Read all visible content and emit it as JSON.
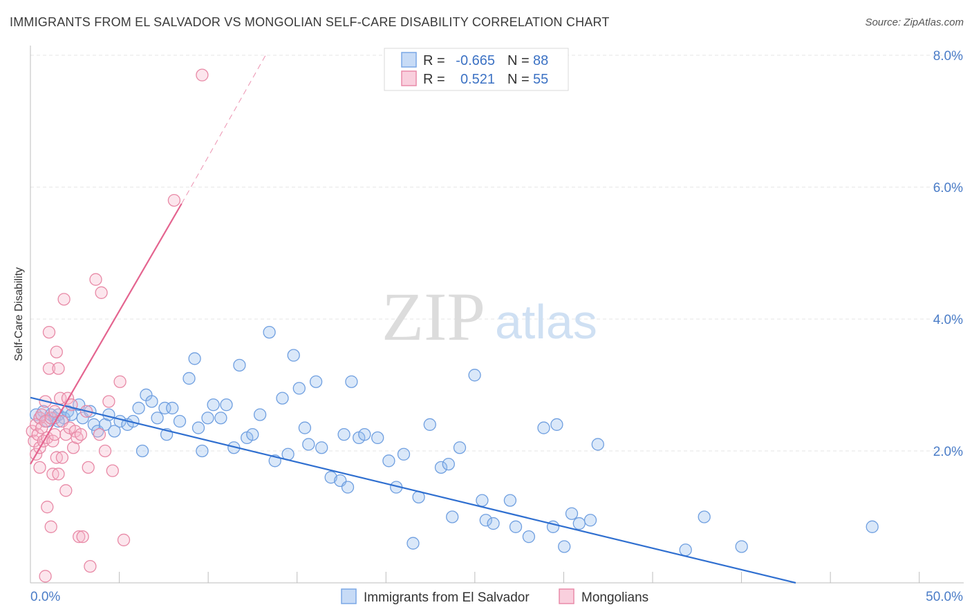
{
  "title": "IMMIGRANTS FROM EL SALVADOR VS MONGOLIAN SELF-CARE DISABILITY CORRELATION CHART",
  "source": "Source: ZipAtlas.com",
  "watermark": {
    "zip": "ZIP",
    "atlas": "atlas"
  },
  "stats": {
    "r_label": "R =",
    "n_label": "N =",
    "rows": [
      {
        "r": "-0.665",
        "n": "88",
        "color": "#7aa7e6",
        "fill": "#c7dbf6"
      },
      {
        "r": "0.521",
        "n": "55",
        "color": "#e98aa8",
        "fill": "#f9cfdd"
      }
    ]
  },
  "chart_data": {
    "type": "scatter",
    "xlabel": "",
    "ylabel": "Self-Care Disability",
    "xlim": [
      0,
      50
    ],
    "ylim": [
      0,
      8
    ],
    "x_tick_labels": [
      "0.0%",
      "50.0%"
    ],
    "y_ticks": [
      {
        "value": 2,
        "label": "2.0%"
      },
      {
        "value": 4,
        "label": "4.0%"
      },
      {
        "value": 6,
        "label": "6.0%"
      },
      {
        "value": 8,
        "label": "8.0%"
      }
    ],
    "series": [
      {
        "name": "Immigrants from El Salvador",
        "color": "#6f9fe0",
        "fill": "rgba(150,188,238,0.35)",
        "trend": {
          "x": [
            0,
            41
          ],
          "y": [
            2.81,
            0.0
          ],
          "color": "#2f6fd0"
        },
        "points": [
          [
            0.3,
            2.55
          ],
          [
            0.5,
            2.5
          ],
          [
            0.7,
            2.6
          ],
          [
            0.9,
            2.45
          ],
          [
            1.1,
            2.55
          ],
          [
            1.3,
            2.5
          ],
          [
            1.5,
            2.55
          ],
          [
            1.8,
            2.5
          ],
          [
            2.0,
            2.6
          ],
          [
            2.2,
            2.55
          ],
          [
            1.5,
            2.45
          ],
          [
            2.6,
            2.7
          ],
          [
            2.8,
            2.5
          ],
          [
            3.2,
            2.6
          ],
          [
            3.4,
            2.4
          ],
          [
            3.6,
            2.3
          ],
          [
            4.0,
            2.4
          ],
          [
            4.2,
            2.55
          ],
          [
            4.5,
            2.3
          ],
          [
            4.8,
            2.45
          ],
          [
            5.2,
            2.4
          ],
          [
            5.5,
            2.45
          ],
          [
            5.8,
            2.65
          ],
          [
            6.0,
            2.0
          ],
          [
            6.2,
            2.85
          ],
          [
            6.5,
            2.75
          ],
          [
            6.8,
            2.5
          ],
          [
            7.2,
            2.65
          ],
          [
            7.3,
            2.25
          ],
          [
            7.6,
            2.65
          ],
          [
            8.0,
            2.45
          ],
          [
            8.5,
            3.1
          ],
          [
            8.8,
            3.4
          ],
          [
            9.0,
            2.35
          ],
          [
            9.2,
            2.0
          ],
          [
            9.5,
            2.5
          ],
          [
            9.8,
            2.7
          ],
          [
            10.2,
            2.5
          ],
          [
            10.5,
            2.7
          ],
          [
            10.9,
            2.05
          ],
          [
            11.2,
            3.3
          ],
          [
            11.6,
            2.2
          ],
          [
            11.9,
            2.25
          ],
          [
            12.3,
            2.55
          ],
          [
            12.8,
            3.8
          ],
          [
            13.1,
            1.85
          ],
          [
            13.5,
            2.8
          ],
          [
            13.8,
            1.95
          ],
          [
            14.1,
            3.45
          ],
          [
            14.4,
            2.95
          ],
          [
            14.7,
            2.35
          ],
          [
            14.9,
            2.1
          ],
          [
            15.3,
            3.05
          ],
          [
            15.6,
            2.05
          ],
          [
            16.1,
            1.6
          ],
          [
            16.6,
            1.55
          ],
          [
            16.8,
            2.25
          ],
          [
            17.0,
            1.45
          ],
          [
            17.2,
            3.05
          ],
          [
            17.6,
            2.2
          ],
          [
            17.9,
            2.25
          ],
          [
            18.6,
            2.2
          ],
          [
            19.2,
            1.85
          ],
          [
            19.6,
            1.45
          ],
          [
            20.0,
            1.95
          ],
          [
            20.5,
            0.6
          ],
          [
            20.8,
            1.3
          ],
          [
            21.4,
            2.4
          ],
          [
            22.0,
            1.75
          ],
          [
            22.4,
            1.8
          ],
          [
            22.6,
            1.0
          ],
          [
            23.0,
            2.05
          ],
          [
            23.8,
            3.15
          ],
          [
            24.2,
            1.25
          ],
          [
            24.4,
            0.95
          ],
          [
            24.8,
            0.9
          ],
          [
            25.7,
            1.25
          ],
          [
            26.0,
            0.85
          ],
          [
            26.7,
            0.7
          ],
          [
            27.5,
            2.35
          ],
          [
            28.0,
            0.85
          ],
          [
            28.2,
            2.4
          ],
          [
            28.6,
            0.55
          ],
          [
            29.0,
            1.05
          ],
          [
            29.4,
            0.9
          ],
          [
            30.0,
            0.95
          ],
          [
            30.4,
            2.1
          ],
          [
            35.1,
            0.5
          ],
          [
            36.1,
            1.0
          ],
          [
            38.1,
            0.55
          ],
          [
            45.1,
            0.85
          ]
        ]
      },
      {
        "name": "Mongolians",
        "color": "#e889a6",
        "fill": "rgba(245,184,203,0.35)",
        "trend": {
          "x": [
            0,
            8.1
          ],
          "y": [
            1.8,
            5.75
          ],
          "color": "#e4648f",
          "dashed_to": {
            "x": 12.6,
            "y": 8.0
          }
        },
        "points": [
          [
            0.1,
            2.3
          ],
          [
            0.2,
            2.15
          ],
          [
            0.3,
            2.4
          ],
          [
            0.3,
            1.95
          ],
          [
            0.4,
            2.25
          ],
          [
            0.5,
            2.5
          ],
          [
            0.5,
            2.05
          ],
          [
            0.5,
            1.75
          ],
          [
            0.6,
            2.35
          ],
          [
            0.6,
            2.55
          ],
          [
            0.7,
            2.15
          ],
          [
            0.8,
            2.75
          ],
          [
            0.8,
            2.45
          ],
          [
            0.9,
            2.2
          ],
          [
            0.9,
            1.15
          ],
          [
            1.0,
            3.8
          ],
          [
            1.0,
            3.25
          ],
          [
            1.1,
            2.5
          ],
          [
            1.1,
            0.85
          ],
          [
            1.2,
            2.15
          ],
          [
            1.2,
            1.65
          ],
          [
            1.3,
            2.6
          ],
          [
            1.3,
            2.25
          ],
          [
            1.4,
            3.5
          ],
          [
            1.4,
            1.9
          ],
          [
            1.5,
            3.25
          ],
          [
            1.5,
            1.65
          ],
          [
            1.6,
            2.8
          ],
          [
            1.7,
            2.45
          ],
          [
            1.7,
            1.9
          ],
          [
            1.8,
            4.3
          ],
          [
            1.9,
            2.25
          ],
          [
            1.9,
            1.4
          ],
          [
            2.0,
            2.8
          ],
          [
            2.1,
            2.35
          ],
          [
            2.2,
            2.7
          ],
          [
            2.3,
            2.05
          ],
          [
            2.4,
            2.3
          ],
          [
            2.5,
            2.2
          ],
          [
            2.6,
            0.7
          ],
          [
            2.7,
            2.25
          ],
          [
            2.8,
            0.7
          ],
          [
            3.0,
            2.6
          ],
          [
            3.1,
            1.75
          ],
          [
            3.2,
            0.25
          ],
          [
            3.5,
            4.6
          ],
          [
            3.7,
            2.25
          ],
          [
            3.8,
            4.4
          ],
          [
            4.0,
            2.0
          ],
          [
            4.2,
            2.75
          ],
          [
            4.4,
            1.7
          ],
          [
            4.8,
            3.05
          ],
          [
            5.0,
            0.65
          ],
          [
            7.7,
            5.8
          ],
          [
            9.2,
            7.7
          ],
          [
            0.8,
            0.1
          ]
        ]
      }
    ]
  },
  "legend": [
    {
      "label": "Immigrants from El Salvador",
      "color": "#7aa7e6",
      "fill": "#c7dbf6"
    },
    {
      "label": "Mongolians",
      "color": "#e98aa8",
      "fill": "#f9cfdd"
    }
  ]
}
